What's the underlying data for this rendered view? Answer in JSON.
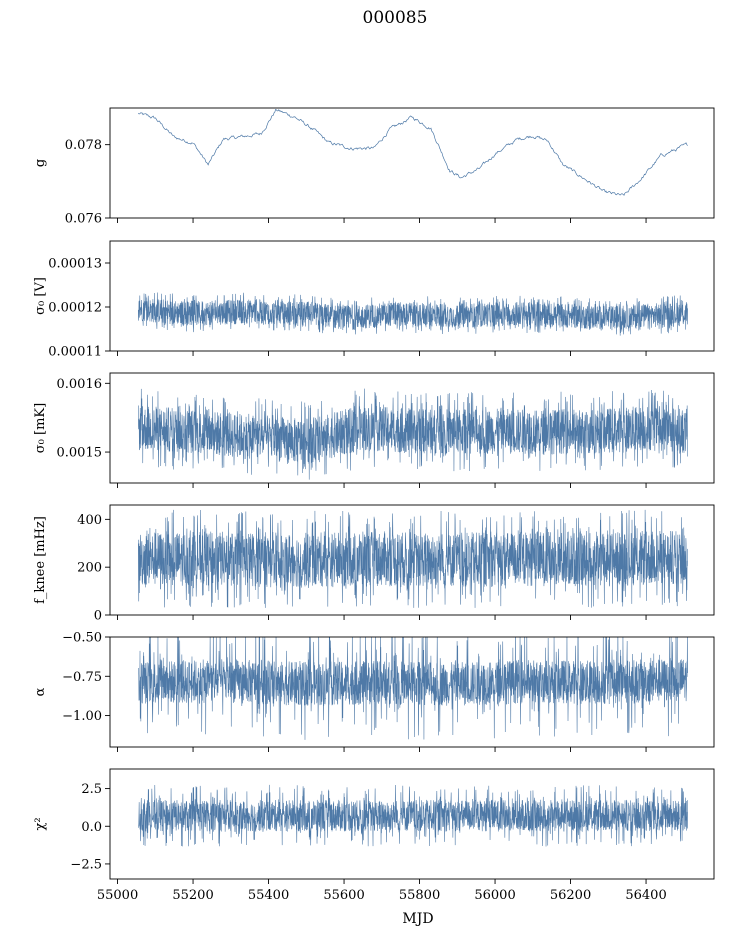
{
  "figure": {
    "title": "000085"
  },
  "chart_data": {
    "type": "line",
    "xlabel": "MJD",
    "xlim": [
      54980,
      56580
    ],
    "xticks": [
      55000,
      55200,
      55400,
      55600,
      55800,
      56000,
      56200,
      56400
    ],
    "x_range": [
      55055,
      56510
    ],
    "line_color": "#4e79a7",
    "grid": false,
    "panels": [
      {
        "id": "g",
        "ylabel": "g",
        "ylim": [
          0.076,
          0.079
        ],
        "yticks": [
          0.076,
          0.078
        ],
        "ytick_labels": [
          "0.076",
          "0.078"
        ],
        "kind": "smooth",
        "trend_x": [
          55055,
          55100,
          55150,
          55200,
          55240,
          55280,
          55320,
          55380,
          55420,
          55470,
          55520,
          55560,
          55620,
          55680,
          55720,
          55780,
          55830,
          55880,
          55910,
          55960,
          56000,
          56060,
          56100,
          56140,
          56180,
          56240,
          56290,
          56340,
          56390,
          56440,
          56510
        ],
        "trend_y": [
          0.07885,
          0.07872,
          0.0782,
          0.07805,
          0.07745,
          0.07815,
          0.0782,
          0.0783,
          0.07895,
          0.07875,
          0.0784,
          0.07805,
          0.0779,
          0.0779,
          0.0784,
          0.07875,
          0.07845,
          0.0773,
          0.0771,
          0.07735,
          0.07775,
          0.07815,
          0.07825,
          0.0781,
          0.07745,
          0.07705,
          0.0767,
          0.0766,
          0.0771,
          0.0777,
          0.078
        ],
        "noise": 6e-05
      },
      {
        "id": "sigma0_V",
        "ylabel": "σ₀ [V]",
        "ylim": [
          0.00011,
          0.000135
        ],
        "yticks": [
          0.00011,
          0.00012,
          0.00013
        ],
        "ytick_labels": [
          "0.00011",
          "0.00012",
          "0.00013"
        ],
        "kind": "band",
        "trend_x": [
          55055,
          55200,
          55350,
          55500,
          55600,
          55750,
          55900,
          56050,
          56200,
          56300,
          56400,
          56510
        ],
        "trend_y": [
          0.0001195,
          0.0001185,
          0.000119,
          0.0001185,
          0.0001175,
          0.0001185,
          0.000118,
          0.0001185,
          0.000118,
          0.0001175,
          0.000118,
          0.0001185
        ],
        "half_width": 2.8e-06,
        "spike": 1.5e-06
      },
      {
        "id": "sigma0_mK",
        "ylabel": "σ₀ [mK]",
        "ylim": [
          0.001455,
          0.001615
        ],
        "yticks": [
          0.0015,
          0.0016
        ],
        "ytick_labels": [
          "0.0015",
          "0.0016"
        ],
        "kind": "band",
        "trend_x": [
          55055,
          55200,
          55400,
          55500,
          55650,
          55800,
          55950,
          56100,
          56250,
          56400,
          56510
        ],
        "trend_y": [
          0.001535,
          0.00153,
          0.00152,
          0.001515,
          0.001535,
          0.00153,
          0.00153,
          0.00153,
          0.00153,
          0.001535,
          0.00153
        ],
        "half_width": 3.3e-05,
        "spike": 2.5e-05
      },
      {
        "id": "fknee",
        "ylabel": "f_knee [mHz]",
        "ylim": [
          0,
          460
        ],
        "yticks": [
          0,
          200,
          400
        ],
        "ytick_labels": [
          "0",
          "200",
          "400"
        ],
        "kind": "band",
        "trend_x": [
          55055,
          55300,
          55500,
          55700,
          55900,
          56100,
          56300,
          56510
        ],
        "trend_y": [
          235,
          235,
          230,
          235,
          230,
          235,
          235,
          240
        ],
        "half_width": 115,
        "spike": 90
      },
      {
        "id": "alpha",
        "ylabel": "α",
        "ylim": [
          -1.2,
          -0.5
        ],
        "yticks": [
          -1.0,
          -0.75,
          -0.5
        ],
        "ytick_labels": [
          "−1.00",
          "−0.75",
          "−0.50"
        ],
        "kind": "band",
        "trend_x": [
          55055,
          55300,
          55500,
          55700,
          55900,
          56100,
          56300,
          56510
        ],
        "trend_y": [
          -0.79,
          -0.78,
          -0.8,
          -0.79,
          -0.8,
          -0.78,
          -0.79,
          -0.77
        ],
        "half_width": 0.14,
        "spike": 0.22
      },
      {
        "id": "chi2",
        "ylabel": "χ²",
        "ylim": [
          -3.5,
          3.8
        ],
        "yticks": [
          -2.5,
          0.0,
          2.5
        ],
        "ytick_labels": [
          "−2.5",
          "0.0",
          "2.5"
        ],
        "kind": "band",
        "trend_x": [
          55055,
          55300,
          55600,
          55900,
          56200,
          56510
        ],
        "trend_y": [
          0.7,
          0.7,
          0.7,
          0.7,
          0.7,
          0.7
        ],
        "half_width": 1.05,
        "spike": 1.0
      }
    ]
  }
}
